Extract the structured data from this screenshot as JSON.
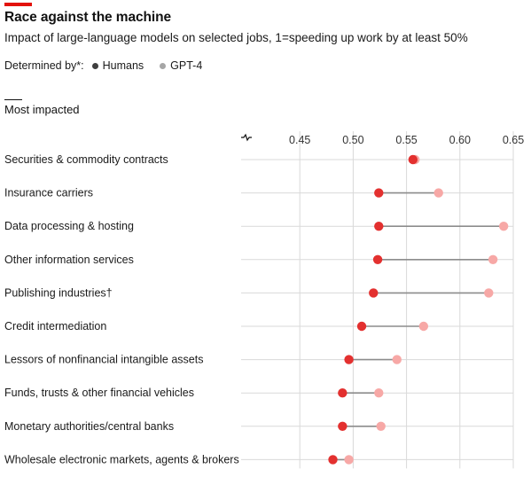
{
  "header": {
    "title": "Race against the machine",
    "subtitle": "Impact of large-language models on selected jobs, 1=speeding up work by at least 50%"
  },
  "legend": {
    "lead": "Determined by*:",
    "items": [
      {
        "label": "Humans",
        "color": "#3f3f3f"
      },
      {
        "label": "GPT-4",
        "color": "#a6a6a6"
      }
    ]
  },
  "section": {
    "title": "Most impacted"
  },
  "colors": {
    "humans_marker": "#e3302f",
    "gpt4_marker": "#f7a8a6",
    "connector": "#8c8c8c",
    "gridline": "#d9d9d9"
  },
  "chart_data": {
    "type": "dumbbell",
    "xlim": [
      0.4,
      0.65
    ],
    "xticks": [
      "0.45",
      "0.50",
      "0.55",
      "0.60",
      "0.65"
    ],
    "grid": true,
    "categories": [
      "Securities & commodity contracts",
      "Insurance carriers",
      "Data processing & hosting",
      "Other information services",
      "Publishing industries†",
      "Credit intermediation",
      "Lessors of nonfinancial intangible assets",
      "Funds, trusts & other financial vehicles",
      "Monetary authorities/central banks",
      "Wholesale electronic markets, agents & brokers"
    ],
    "series": [
      {
        "name": "Humans",
        "values": [
          0.556,
          0.524,
          0.524,
          0.523,
          0.519,
          0.508,
          0.496,
          0.49,
          0.49,
          0.481
        ]
      },
      {
        "name": "GPT-4",
        "values": [
          0.558,
          0.58,
          0.641,
          0.631,
          0.627,
          0.566,
          0.541,
          0.524,
          0.526,
          0.496
        ]
      }
    ]
  }
}
